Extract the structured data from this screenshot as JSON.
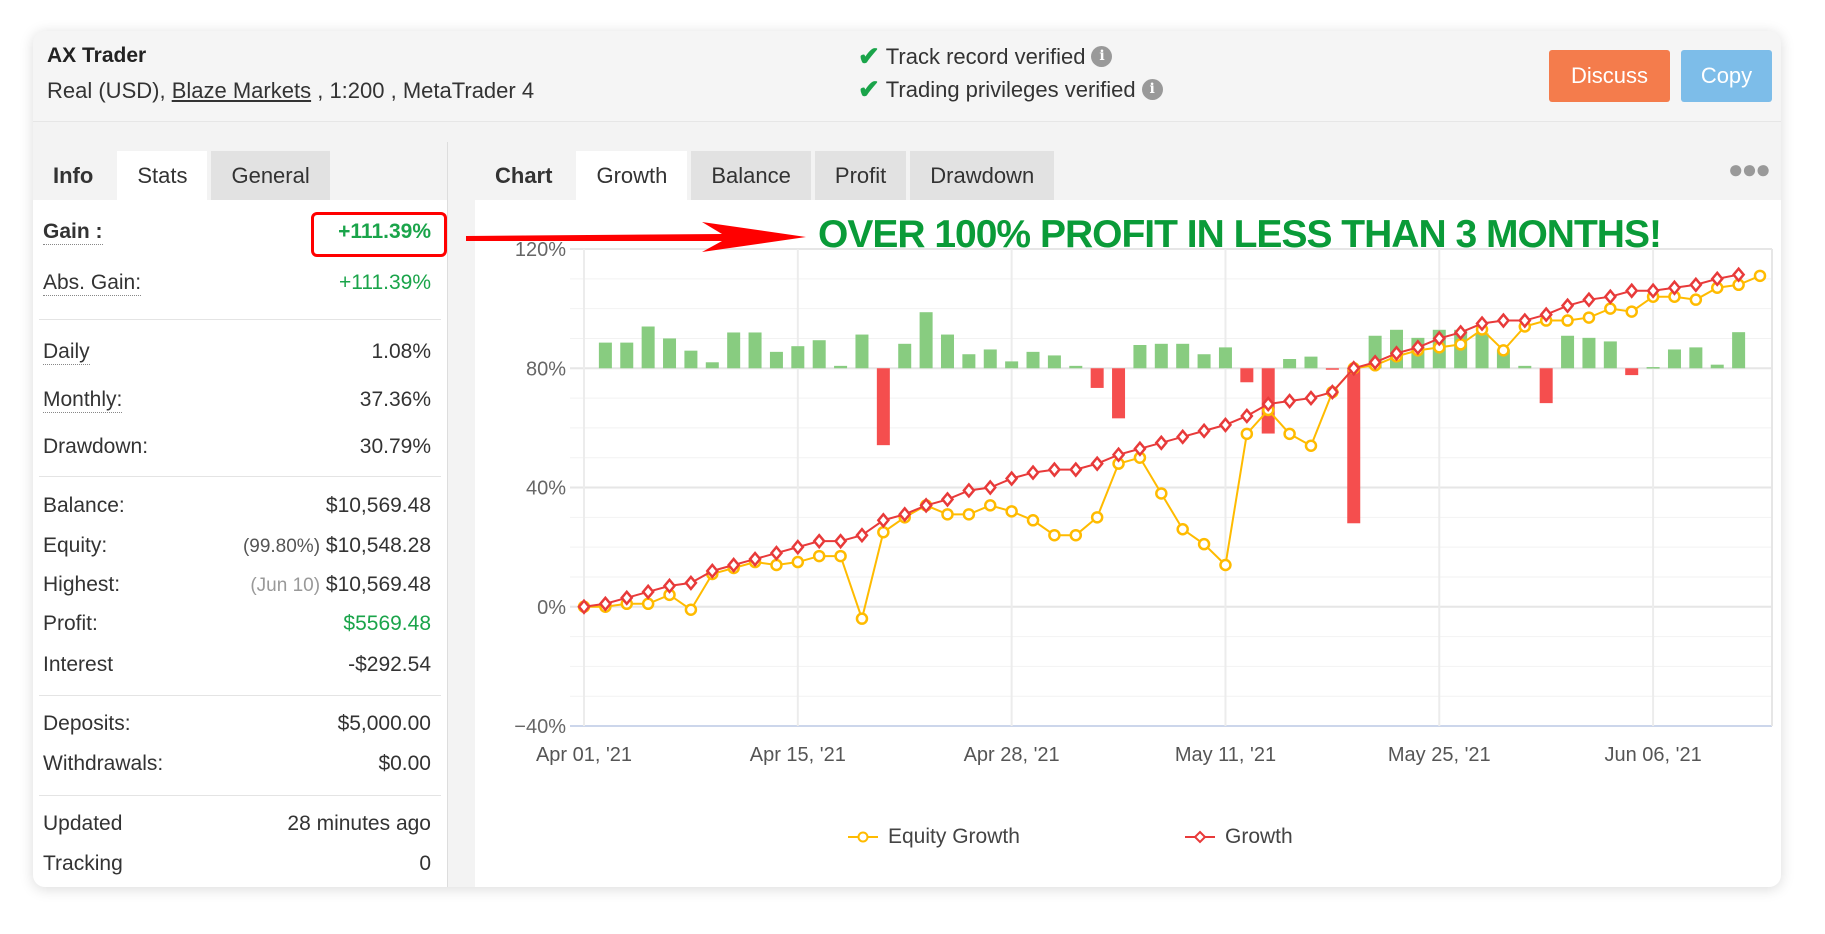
{
  "header": {
    "title": "AX Trader",
    "account_prefix": "Real (USD),",
    "broker": "Blaze Markets",
    "account_suffix": ", 1:200 , MetaTrader 4",
    "verified": [
      {
        "label": "Track record verified"
      },
      {
        "label": "Trading privileges verified"
      }
    ],
    "discuss_label": "Discuss",
    "copy_label": "Copy",
    "discuss_color": "#f47c4c",
    "copy_color": "#7dbde9"
  },
  "left_tabs": [
    {
      "label": "Info"
    },
    {
      "label": "Stats"
    },
    {
      "label": "General"
    }
  ],
  "stats": {
    "gain": {
      "label": "Gain :",
      "value": "+111.39%"
    },
    "abs_gain": {
      "label": "Abs. Gain:",
      "value": "+111.39%"
    },
    "daily": {
      "label": "Daily",
      "value": "1.08%"
    },
    "monthly": {
      "label": "Monthly:",
      "value": "37.36%"
    },
    "drawdown": {
      "label": "Drawdown:",
      "value": "30.79%"
    },
    "balance": {
      "label": "Balance:",
      "value": "$10,569.48"
    },
    "equity": {
      "label": "Equity:",
      "note": "(99.80%)",
      "value": "$10,548.28"
    },
    "highest": {
      "label": "Highest:",
      "note": "(Jun 10)",
      "value": "$10,569.48"
    },
    "profit": {
      "label": "Profit:",
      "value": "$5569.48"
    },
    "interest": {
      "label": "Interest",
      "value": "-$292.54"
    },
    "deposits": {
      "label": "Deposits:",
      "value": "$5,000.00"
    },
    "withdrawals": {
      "label": "Withdrawals:",
      "value": "$0.00"
    },
    "updated": {
      "label": "Updated",
      "value": "28 minutes ago"
    },
    "tracking": {
      "label": "Tracking",
      "value": "0"
    }
  },
  "right_tabs": [
    {
      "label": "Chart"
    },
    {
      "label": "Growth"
    },
    {
      "label": "Balance"
    },
    {
      "label": "Profit"
    },
    {
      "label": "Drawdown"
    }
  ],
  "annotation": "OVER 100% PROFIT IN LESS THAN 3 MONTHS!",
  "chart_data": {
    "type": "line",
    "ylim": [
      -40,
      120
    ],
    "yticks": [
      "120%",
      "80%",
      "40%",
      "0%",
      "−40%"
    ],
    "ytick_values": [
      120,
      80,
      40,
      0,
      -40
    ],
    "xticks": [
      {
        "label": "Apr 01, '21",
        "index": 0
      },
      {
        "label": "Apr 15, '21",
        "index": 10
      },
      {
        "label": "Apr 28, '21",
        "index": 20
      },
      {
        "label": "May 11, '21",
        "index": 30
      },
      {
        "label": "May 25, '21",
        "index": 40
      },
      {
        "label": "Jun 06, '21",
        "index": 50
      }
    ],
    "series": [
      {
        "name": "Equity Growth",
        "color": "#ffbb00",
        "values": [
          0,
          0,
          1,
          1,
          4,
          -1,
          11,
          13,
          15,
          14,
          15,
          17,
          17,
          -4,
          25,
          30,
          34,
          31,
          31,
          34,
          32,
          29,
          24,
          24,
          30,
          48,
          50,
          38,
          26,
          21,
          14,
          58,
          66,
          58,
          54,
          72,
          80,
          81,
          84,
          86,
          87,
          88,
          93,
          86,
          94,
          96,
          96,
          97,
          100,
          99,
          104,
          104,
          103,
          107,
          108,
          111
        ]
      },
      {
        "name": "Growth",
        "color": "#e83a3a",
        "values": [
          0,
          1,
          3,
          5,
          7,
          8,
          12,
          14,
          16,
          18,
          20,
          22,
          22,
          24,
          29,
          31,
          34,
          36,
          39,
          40,
          43,
          45,
          46,
          46,
          48,
          51,
          53,
          55,
          57,
          59,
          61,
          64,
          68,
          69,
          70,
          72,
          80,
          82,
          85,
          87,
          90,
          92,
          95,
          96,
          96,
          98,
          101,
          103,
          104,
          106,
          106,
          107,
          108,
          110,
          111.39
        ]
      }
    ],
    "bars": {
      "baseline": 80,
      "positive_color": "#88cc80",
      "negative_color": "#f54e4e",
      "values": [
        8.6,
        8.6,
        14,
        10,
        5.9,
        2,
        12,
        12,
        5.5,
        7.4,
        9.4,
        0.8,
        11.3,
        -25.8,
        8.2,
        18.8,
        11.3,
        4.7,
        6.3,
        2.3,
        5.5,
        4.3,
        0.8,
        -6.6,
        -16.8,
        7.8,
        8.2,
        8.2,
        4.7,
        7,
        -4.7,
        -21.9,
        3.1,
        3.9,
        -0.4,
        -52,
        10.9,
        12.9,
        10.2,
        12.9,
        12.9,
        11.7,
        6.3,
        0.8,
        -11.7,
        10.9,
        10.2,
        9,
        -2.3,
        0.4,
        6.3,
        7,
        1.2,
        12.1
      ]
    },
    "legend": [
      {
        "label": "Equity Growth"
      },
      {
        "label": "Growth"
      }
    ]
  }
}
